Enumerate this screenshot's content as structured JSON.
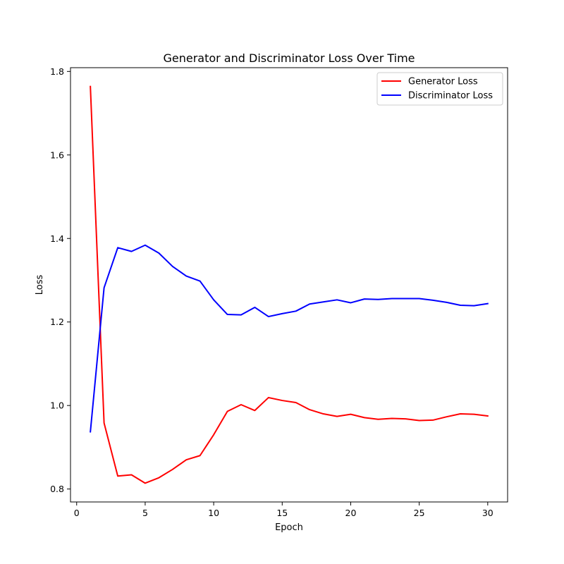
{
  "chart_data": {
    "type": "line",
    "title": "Generator and Discriminator Loss Over Time",
    "xlabel": "Epoch",
    "ylabel": "Loss",
    "xlim": [
      -0.45,
      31.45
    ],
    "ylim": [
      0.769,
      1.809
    ],
    "xticks": [
      0,
      5,
      10,
      15,
      20,
      25,
      30
    ],
    "yticks": [
      0.8,
      1.0,
      1.2,
      1.4,
      1.6,
      1.8
    ],
    "xtick_labels": [
      "0",
      "5",
      "10",
      "15",
      "20",
      "25",
      "30"
    ],
    "ytick_labels": [
      "0.8",
      "1.0",
      "1.2",
      "1.4",
      "1.6",
      "1.8"
    ],
    "grid": false,
    "legend_position": "top-right",
    "x": [
      1,
      2,
      3,
      4,
      5,
      6,
      7,
      8,
      9,
      10,
      11,
      12,
      13,
      14,
      15,
      16,
      17,
      18,
      19,
      20,
      21,
      22,
      23,
      24,
      25,
      26,
      27,
      28,
      29,
      30
    ],
    "series": [
      {
        "name": "Generator Loss",
        "color": "#ff0000",
        "values": [
          1.764,
          0.958,
          0.831,
          0.834,
          0.814,
          0.827,
          0.847,
          0.87,
          0.88,
          0.93,
          0.986,
          1.002,
          0.988,
          1.019,
          1.012,
          1.007,
          0.99,
          0.98,
          0.974,
          0.979,
          0.971,
          0.967,
          0.969,
          0.968,
          0.964,
          0.965,
          0.973,
          0.98,
          0.979,
          0.975
        ]
      },
      {
        "name": "Discriminator Loss",
        "color": "#0000ff",
        "values": [
          0.937,
          1.282,
          1.378,
          1.369,
          1.384,
          1.365,
          1.333,
          1.31,
          1.298,
          1.253,
          1.218,
          1.217,
          1.235,
          1.213,
          1.22,
          1.226,
          1.243,
          1.248,
          1.253,
          1.246,
          1.255,
          1.254,
          1.256,
          1.256,
          1.256,
          1.252,
          1.247,
          1.24,
          1.239,
          1.244
        ]
      }
    ]
  }
}
